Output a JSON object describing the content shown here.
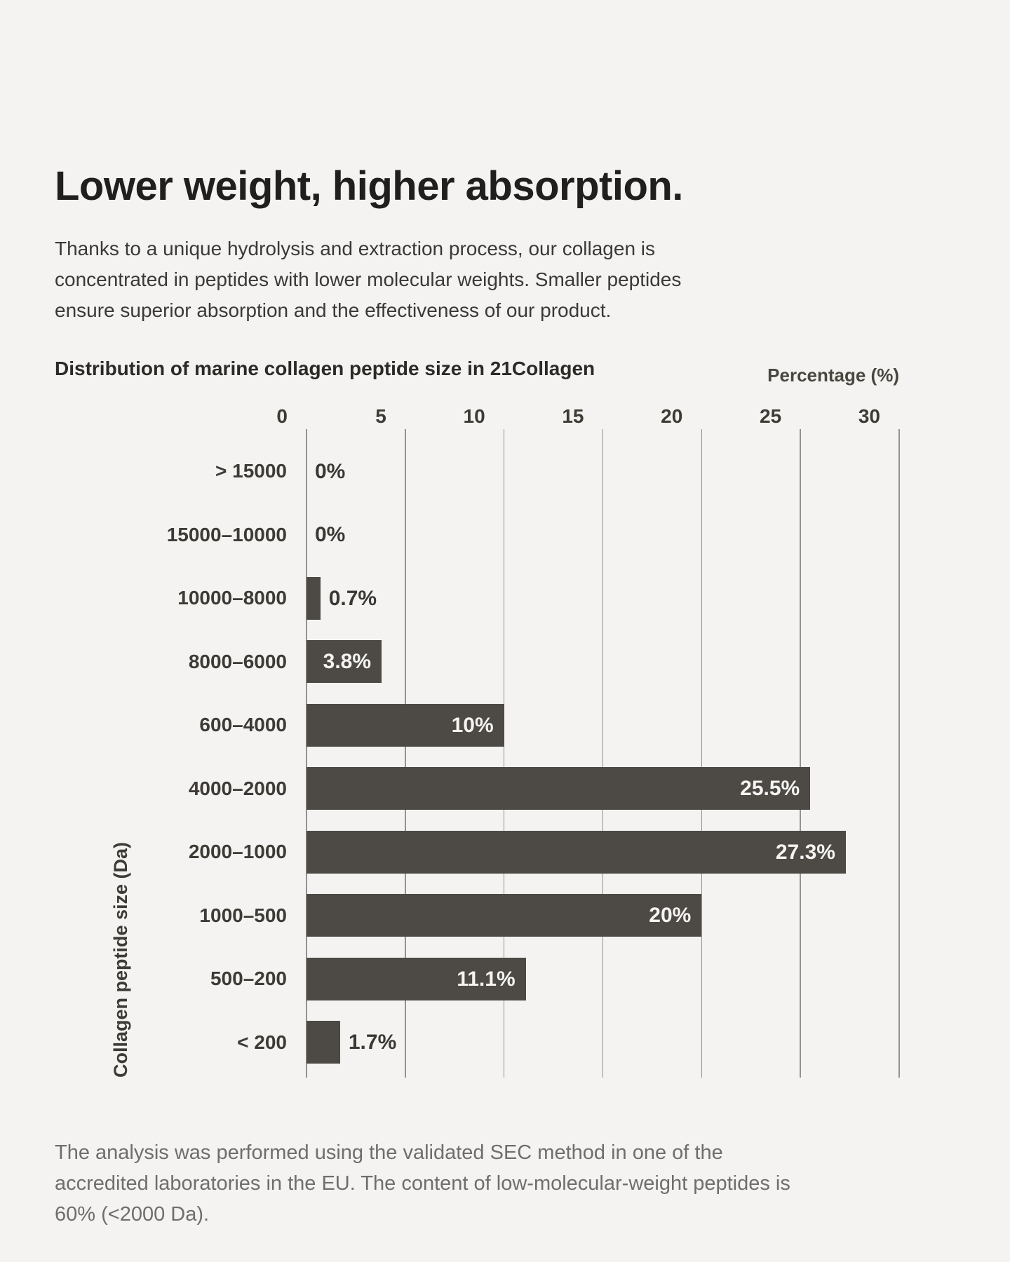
{
  "page": {
    "background": "#f4f3f1"
  },
  "header": {
    "title": "Lower weight, higher absorption.",
    "subtitle_lines": [
      "Thanks to a unique hydrolysis and extraction process, our collagen is",
      "concentrated in peptides with lower molecular weights. Smaller peptides",
      "ensure superior absorption and the effectiveness of our product."
    ]
  },
  "chart": {
    "title": "Distribution of marine collagen peptide size in 21Collagen",
    "x_axis_label": "Percentage (%)",
    "y_axis_label": "Collagen peptide size (Da)",
    "bar_color": "#4d4a45",
    "grid_color": "#94928e"
  },
  "chart_data": {
    "type": "bar",
    "orientation": "horizontal",
    "title": "Distribution of marine collagen peptide size in 21Collagen",
    "xlabel": "Percentage (%)",
    "ylabel": "Collagen peptide size (Da)",
    "xlim": [
      0,
      30
    ],
    "x_ticks": [
      0,
      5,
      10,
      15,
      20,
      25,
      30
    ],
    "grid": true,
    "legend": false,
    "categories": [
      "> 15000",
      "15000–10000",
      "10000–8000",
      "8000–6000",
      "600–4000",
      "4000–2000",
      "2000–1000",
      "1000–500",
      "500–200",
      "< 200"
    ],
    "values": [
      0,
      0,
      0.7,
      3.8,
      10,
      25.5,
      27.3,
      20,
      11.1,
      1.7
    ],
    "value_labels": [
      "0%",
      "0%",
      "0.7%",
      "3.8%",
      "10%",
      "25.5%",
      "27.3%",
      "20%",
      "11.1%",
      "1.7%"
    ]
  },
  "footer": {
    "lines": [
      "The analysis was performed using the validated SEC method in one of the",
      "accredited laboratories in the EU. The content of low-molecular-weight peptides is",
      "60% (<2000 Da)."
    ]
  }
}
